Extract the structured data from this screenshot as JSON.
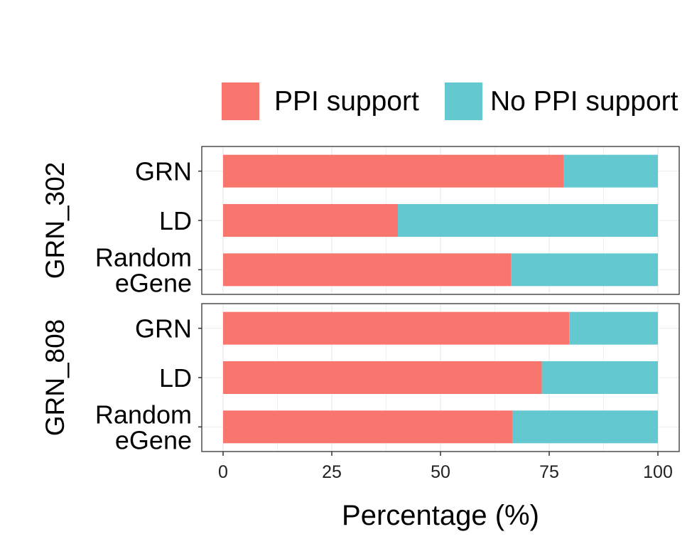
{
  "chart_data": {
    "type": "bar",
    "orientation": "horizontal",
    "stacked": true,
    "xlabel": "Percentage (%)",
    "ylabel": "",
    "xlim": [
      0,
      100
    ],
    "xticks": [
      "0",
      "25",
      "50",
      "75",
      "100"
    ],
    "grid": true,
    "legend_position": "top",
    "legend": [
      {
        "name": "PPI support",
        "color": "#F8766D"
      },
      {
        "name": "No PPI support",
        "color": "#63C8CF"
      }
    ],
    "facets": [
      {
        "title": "GRN_302",
        "categories": [
          [
            "GRN"
          ],
          [
            "LD"
          ],
          [
            "Random",
            "eGene"
          ]
        ],
        "series": [
          {
            "name": "PPI support",
            "values": [
              78.4,
              40.2,
              66.2
            ]
          },
          {
            "name": "No PPI support",
            "values": [
              21.6,
              59.8,
              33.8
            ]
          }
        ]
      },
      {
        "title": "GRN_808",
        "categories": [
          [
            "GRN"
          ],
          [
            "LD"
          ],
          [
            "Random",
            "eGene"
          ]
        ],
        "series": [
          {
            "name": "PPI support",
            "values": [
              79.6,
              73.3,
              66.5
            ]
          },
          {
            "name": "No PPI support",
            "values": [
              20.4,
              26.7,
              33.5
            ]
          }
        ]
      }
    ]
  }
}
